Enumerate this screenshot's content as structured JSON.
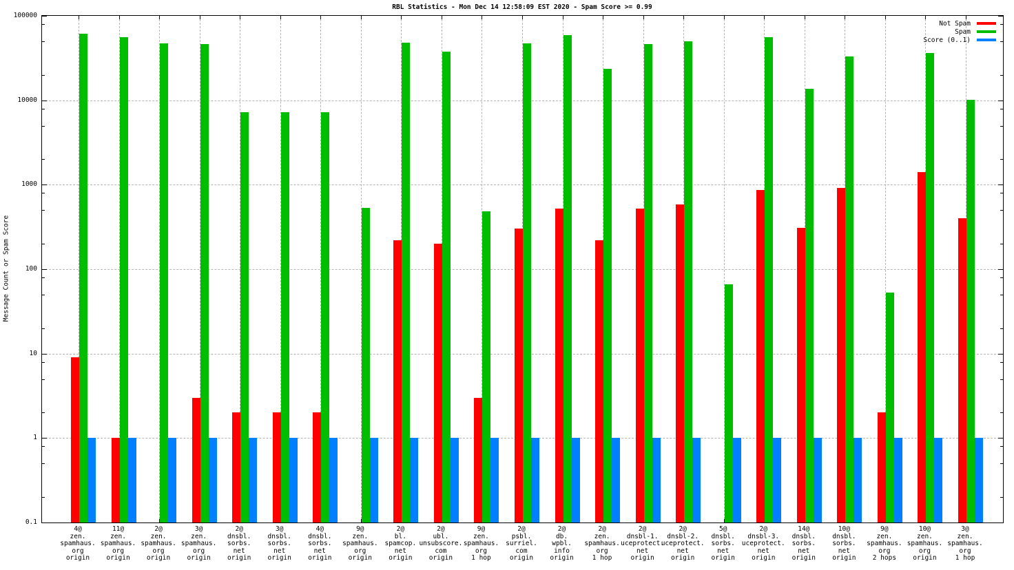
{
  "chart_data": {
    "type": "bar",
    "title": "RBL Statistics - Mon Dec 14 12:58:09 EST 2020 - Spam Score >= 0.99",
    "ylabel": "Message Count or Spam Score",
    "y_scale": "log",
    "ylim": [
      0.1,
      100000
    ],
    "y_ticks": [
      "100000",
      "10000",
      "1000",
      "100",
      "10",
      "1",
      "0.1"
    ],
    "y_minor_tick_multiples": [
      2,
      5,
      8
    ],
    "grid": true,
    "legend_position": "top-right-inside",
    "categories": [
      [
        "4@",
        "zen.",
        "spamhaus.",
        "org",
        "origin"
      ],
      [
        "11@",
        "zen.",
        "spamhaus.",
        "org",
        "origin"
      ],
      [
        "2@",
        "zen.",
        "spamhaus.",
        "org",
        "origin"
      ],
      [
        "3@",
        "zen.",
        "spamhaus.",
        "org",
        "origin"
      ],
      [
        "2@",
        "dnsbl.",
        "sorbs.",
        "net",
        "origin"
      ],
      [
        "3@",
        "dnsbl.",
        "sorbs.",
        "net",
        "origin"
      ],
      [
        "4@",
        "dnsbl.",
        "sorbs.",
        "net",
        "origin"
      ],
      [
        "9@",
        "zen.",
        "spamhaus.",
        "org",
        "origin"
      ],
      [
        "2@",
        "bl.",
        "spamcop.",
        "net",
        "origin"
      ],
      [
        "2@",
        "ubl.",
        "unsubscore.",
        "com",
        "origin"
      ],
      [
        "9@",
        "zen.",
        "spamhaus.",
        "org",
        "1 hop"
      ],
      [
        "2@",
        "psbl.",
        "surriel.",
        "com",
        "origin"
      ],
      [
        "2@",
        "db.",
        "wpbl.",
        "info",
        "origin"
      ],
      [
        "2@",
        "zen.",
        "spamhaus.",
        "org",
        "1 hop"
      ],
      [
        "2@",
        "dnsbl-1.",
        "uceprotect.",
        "net",
        "origin"
      ],
      [
        "2@",
        "dnsbl-2.",
        "uceprotect.",
        "net",
        "origin"
      ],
      [
        "5@",
        "dnsbl.",
        "sorbs.",
        "net",
        "origin"
      ],
      [
        "2@",
        "dnsbl-3.",
        "uceprotect.",
        "net",
        "origin"
      ],
      [
        "14@",
        "dnsbl.",
        "sorbs.",
        "net",
        "origin"
      ],
      [
        "10@",
        "dnsbl.",
        "sorbs.",
        "net",
        "origin"
      ],
      [
        "9@",
        "zen.",
        "spamhaus.",
        "org",
        "2 hops"
      ],
      [
        "10@",
        "zen.",
        "spamhaus.",
        "org",
        "origin"
      ],
      [
        "3@",
        "zen.",
        "spamhaus.",
        "org",
        "1 hop"
      ]
    ],
    "series": [
      {
        "name": "Not Spam",
        "color": "#ff0000",
        "values": [
          9,
          1,
          0,
          3,
          2,
          2,
          2,
          0,
          220,
          200,
          3,
          300,
          520,
          220,
          520,
          580,
          0,
          870,
          310,
          920,
          2,
          1400,
          400
        ]
      },
      {
        "name": "Spam",
        "color": "#00bd00",
        "values": [
          61000,
          56000,
          47000,
          46000,
          7200,
          7200,
          7200,
          530,
          48000,
          38000,
          480,
          47000,
          59000,
          23500,
          46500,
          50000,
          66,
          56000,
          13600,
          33000,
          53,
          36000,
          10200
        ]
      },
      {
        "name": "Score (0..1)",
        "color": "#0080ff",
        "values": [
          1,
          1,
          1,
          1,
          1,
          1,
          1,
          1,
          1,
          1,
          1,
          1,
          1,
          1,
          1,
          1,
          1,
          1,
          1,
          1,
          1,
          1,
          1
        ]
      }
    ]
  },
  "colors": {
    "not_spam": "#ff0000",
    "spam": "#00bd00",
    "score": "#0080ff",
    "grid": "#b4b4b4",
    "axis": "#000000",
    "background": "#ffffff"
  }
}
